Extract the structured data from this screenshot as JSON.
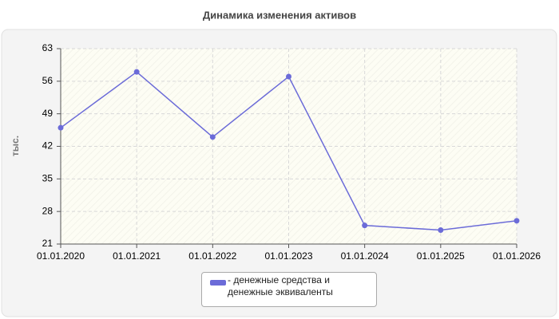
{
  "chart_data": {
    "type": "line",
    "title": "Динамика изменения активов",
    "y_label": "тыс.",
    "categories": [
      "01.01.2020",
      "01.01.2021",
      "01.01.2022",
      "01.01.2023",
      "01.01.2024",
      "01.01.2025",
      "01.01.2026"
    ],
    "series": [
      {
        "name": "- денежные средства и денежные эквиваленты",
        "color": "#6b6bd8",
        "values": [
          46,
          58,
          44,
          57,
          25,
          24,
          26
        ]
      }
    ],
    "ylim": [
      21,
      63
    ],
    "yticks": [
      21,
      28,
      35,
      42,
      49,
      56,
      63
    ],
    "grid": true
  }
}
